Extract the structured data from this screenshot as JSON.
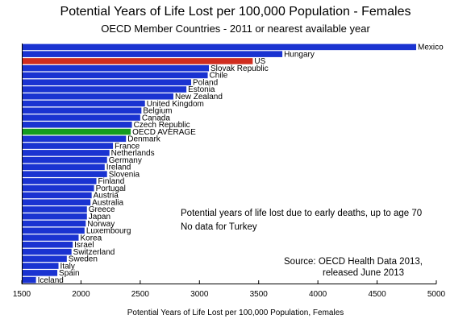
{
  "chart_data": {
    "type": "bar",
    "orientation": "horizontal",
    "title": "Potential Years of Life Lost per 100,000 Population - Females",
    "subtitle": "OECD Member Countries - 2011 or nearest available year",
    "xlabel": "Potential Years of Life Lost per 100,000 Population, Females",
    "xlim": [
      1500,
      5000
    ],
    "xticks": [
      1500,
      2000,
      2500,
      3000,
      3500,
      4000,
      4500,
      5000
    ],
    "grid": false,
    "categories": [
      "Mexico",
      "Hungary",
      "US",
      "Slovak Republic",
      "Chile",
      "Poland",
      "Estonia",
      "New Zealand",
      "United Kingdom",
      "Belgium",
      "Canada",
      "Czech Republic",
      "OECD AVERAGE",
      "Denmark",
      "France",
      "Netherlands",
      "Germany",
      "Ireland",
      "Slovenia",
      "Finland",
      "Portugal",
      "Austria",
      "Australia",
      "Greece",
      "Japan",
      "Norway",
      "Luxembourg",
      "Korea",
      "Israel",
      "Switzerland",
      "Sweden",
      "Italy",
      "Spain",
      "Iceland"
    ],
    "values": [
      4830,
      3700,
      3450,
      3080,
      3070,
      2930,
      2890,
      2780,
      2540,
      2510,
      2500,
      2430,
      2420,
      2380,
      2270,
      2240,
      2220,
      2200,
      2220,
      2130,
      2110,
      2090,
      2080,
      2050,
      2050,
      2040,
      2030,
      1980,
      1930,
      1920,
      1880,
      1810,
      1800,
      1620
    ],
    "bar_colors": {
      "default": "#1a33d1",
      "US": "#d02d1f",
      "OECD AVERAGE": "#159b1f"
    },
    "annotations": {
      "note_line1": "Potential years of life lost due to early deaths, up to age 70",
      "note_line2": "No data for Turkey",
      "source_line1": "Source:  OECD Health Data 2013,",
      "source_line2": "released June 2013"
    }
  }
}
